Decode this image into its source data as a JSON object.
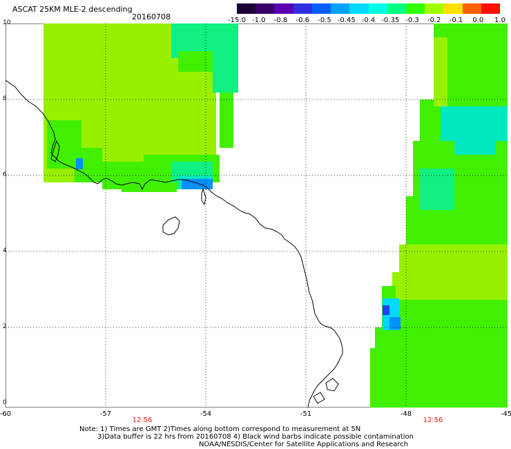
{
  "header": {
    "title": "ASCAT 25KM MLE-2 descending",
    "date": "20160708"
  },
  "colorbar": {
    "labels": [
      "-15.0",
      "-1.0",
      "-0.8",
      "-0.6",
      "-0.5",
      "-0.45",
      "-0.4",
      "-0.35",
      "-0.3",
      "-0.2",
      "-0.1",
      "0.0",
      "1.0"
    ],
    "colors": [
      "#1a0033",
      "#3a006a",
      "#5a00b0",
      "#3030e0",
      "#0060ff",
      "#00a0ff",
      "#00d8ff",
      "#00ffe0",
      "#00ff80",
      "#30ff00",
      "#a0ff00",
      "#ffe000",
      "#ff6000",
      "#ff1000"
    ]
  },
  "axes": {
    "y_labels": [
      "10",
      "8",
      "6",
      "4",
      "2",
      "0"
    ],
    "x_labels": [
      "-60",
      "-57",
      "-54",
      "-51",
      "-48",
      "-45"
    ],
    "time_labels": [
      "12:56",
      "12:56"
    ]
  },
  "notes": {
    "line1": "Note: 1) Times are GMT 2)Times along bottom correspond to measurement at 5N",
    "line2": "3)Data buffer is 22 hrs from 20160708 4) Black wind barbs indicate possible contamination",
    "line3": "NOAA/NESDIS/Center for Satellite Applications and Research"
  },
  "map": {
    "data_colors": {
      "yellow_green": "#98f000",
      "green": "#40f000",
      "spring": "#10f080",
      "aqua": "#00e8c0",
      "cyan": "#00d8ff",
      "blue": "#0090ff",
      "deep_blue": "#2040ff"
    }
  }
}
